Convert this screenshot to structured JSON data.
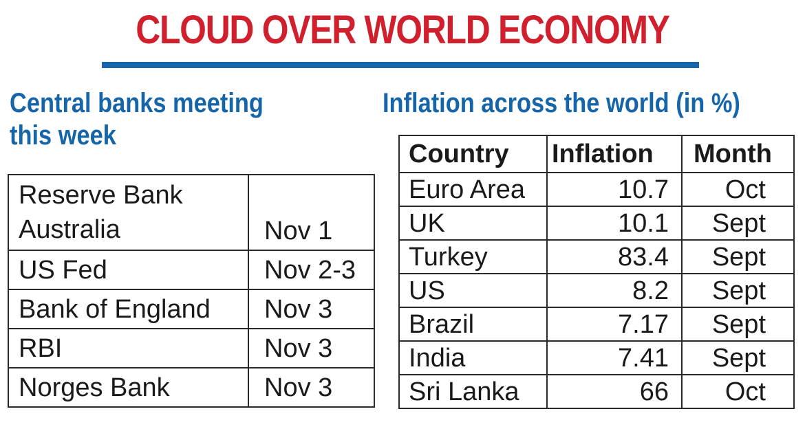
{
  "headline": "CLOUD OVER WORLD ECONOMY",
  "colors": {
    "headline": "#d0202e",
    "section_title": "#1565a8",
    "rule": "#1565a8"
  },
  "meetings": {
    "title_line1": "Central banks meeting",
    "title_line2": "this week",
    "rows": [
      {
        "bank": "Reserve Bank Australia",
        "date": "Nov 1"
      },
      {
        "bank": "US Fed",
        "date": "Nov 2-3"
      },
      {
        "bank": "Bank of England",
        "date": "Nov 3"
      },
      {
        "bank": "RBI",
        "date": "Nov 3"
      },
      {
        "bank": "Norges Bank",
        "date": "Nov 3"
      }
    ]
  },
  "inflation": {
    "title": "Inflation across the world (in %)",
    "headers": [
      "Country",
      "Inflation",
      "Month"
    ],
    "rows": [
      {
        "country": "Euro Area",
        "inflation": "10.7",
        "month": "Oct"
      },
      {
        "country": "UK",
        "inflation": "10.1",
        "month": "Sept"
      },
      {
        "country": "Turkey",
        "inflation": "83.4",
        "month": "Sept"
      },
      {
        "country": "US",
        "inflation": "8.2",
        "month": "Sept"
      },
      {
        "country": "Brazil",
        "inflation": "7.17",
        "month": "Sept"
      },
      {
        "country": "India",
        "inflation": "7.41",
        "month": "Sept"
      },
      {
        "country": "Sri Lanka",
        "inflation": "66",
        "month": "Oct"
      }
    ]
  }
}
